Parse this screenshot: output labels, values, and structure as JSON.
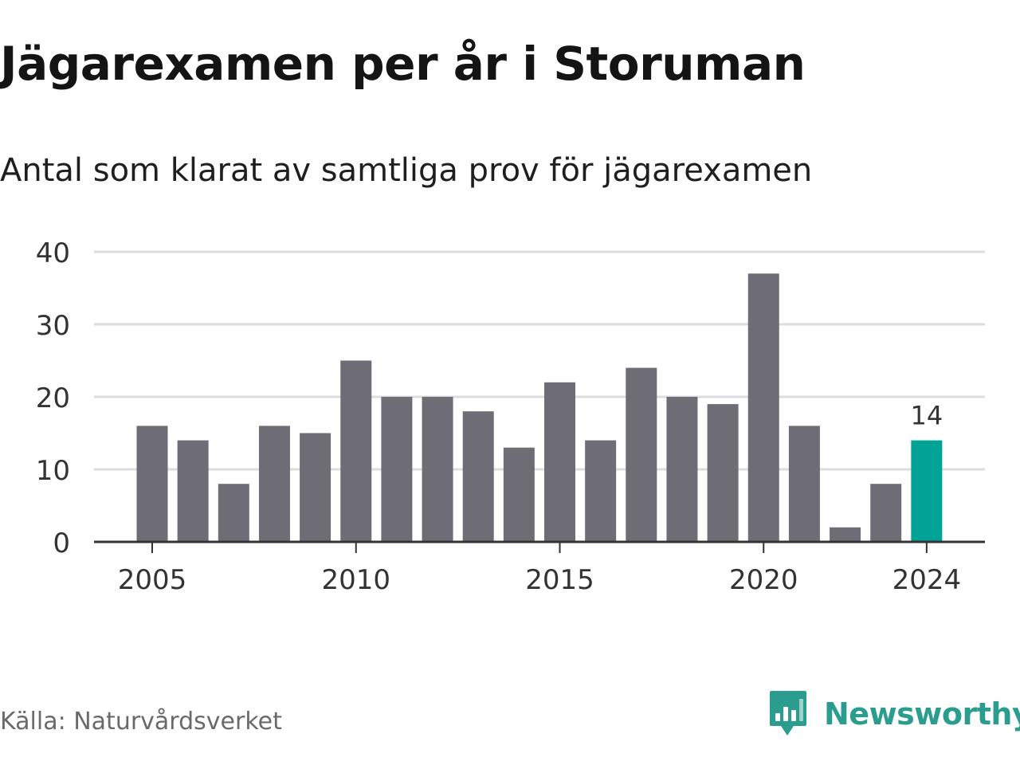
{
  "header": {
    "title": "Jägarexamen per år i Storuman",
    "subtitle": "Antal som klarat av samtliga prov för jägarexamen"
  },
  "footer": {
    "source": "Källa: Naturvårdsverket",
    "brand": "Newsworthy"
  },
  "colors": {
    "bar": "#6e6d75",
    "highlight": "#00a396",
    "grid": "#dcdcdc",
    "axis": "#333333",
    "text": "#333333",
    "brand": "#2a9d8f"
  },
  "chart_data": {
    "type": "bar",
    "title": "Jägarexamen per år i Storuman",
    "subtitle": "Antal som klarat av samtliga prov för jägarexamen",
    "xlabel": "",
    "ylabel": "",
    "categories": [
      2005,
      2006,
      2007,
      2008,
      2009,
      2010,
      2011,
      2012,
      2013,
      2014,
      2015,
      2016,
      2017,
      2018,
      2019,
      2020,
      2021,
      2022,
      2023,
      2024
    ],
    "values": [
      16,
      14,
      8,
      16,
      15,
      25,
      20,
      20,
      18,
      13,
      22,
      14,
      24,
      20,
      19,
      37,
      16,
      2,
      8,
      14
    ],
    "highlight": {
      "category": 2024,
      "label": "14"
    },
    "ylim": [
      0,
      40
    ],
    "yticks": [
      "0",
      "10",
      "20",
      "30",
      "40"
    ],
    "xticks": [
      "2005",
      "2010",
      "2015",
      "2020",
      "2024"
    ],
    "grid": true,
    "legend": "none"
  }
}
